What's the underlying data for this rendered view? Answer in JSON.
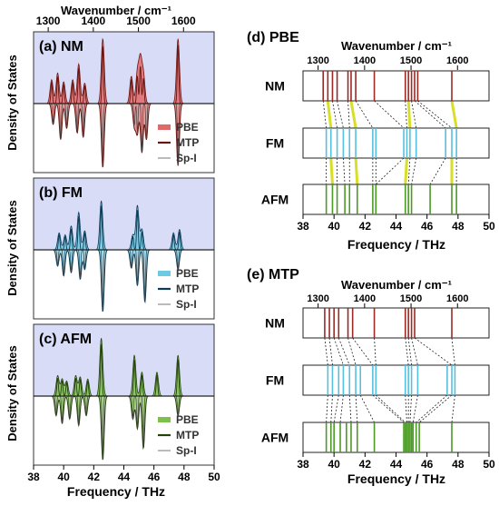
{
  "chart_data": [
    {
      "type": "area",
      "panels": [
        {
          "label": "(a) NM",
          "background": "#d8dcf7",
          "fill": "#e06a6a",
          "dark": "#6b1510",
          "legend": [
            "PBE",
            "MTP",
            "Sp-I"
          ],
          "upper_peaks": [
            [
              39.2,
              0.35
            ],
            [
              39.6,
              0.45
            ],
            [
              40.0,
              0.32
            ],
            [
              40.6,
              0.35
            ],
            [
              41.0,
              0.58
            ],
            [
              41.4,
              0.3
            ],
            [
              42.6,
              0.95
            ],
            [
              44.5,
              0.4
            ],
            [
              44.9,
              0.45
            ],
            [
              45.1,
              0.62
            ],
            [
              45.3,
              0.42
            ],
            [
              47.6,
              0.95
            ]
          ],
          "lower_peaks": [
            [
              39.3,
              0.32
            ],
            [
              39.8,
              0.55
            ],
            [
              40.2,
              0.38
            ],
            [
              40.9,
              0.45
            ],
            [
              41.3,
              0.52
            ],
            [
              42.6,
              0.98
            ],
            [
              44.7,
              0.35
            ],
            [
              44.9,
              0.45
            ],
            [
              45.2,
              0.75
            ],
            [
              45.5,
              0.55
            ],
            [
              47.6,
              0.95
            ]
          ]
        },
        {
          "label": "(b) FM",
          "background": "#d8dcf7",
          "fill": "#6ec9e2",
          "dark": "#0e3c57",
          "legend": [
            "PBE",
            "MTP",
            "Sp-I"
          ],
          "upper_peaks": [
            [
              39.7,
              0.25
            ],
            [
              40.1,
              0.22
            ],
            [
              40.5,
              0.35
            ],
            [
              41.0,
              0.55
            ],
            [
              41.4,
              0.28
            ],
            [
              42.5,
              0.72
            ],
            [
              44.6,
              0.22
            ],
            [
              44.9,
              0.65
            ],
            [
              45.2,
              0.3
            ],
            [
              47.3,
              0.25
            ],
            [
              47.7,
              0.3
            ]
          ],
          "lower_peaks": [
            [
              39.6,
              0.25
            ],
            [
              40.0,
              0.4
            ],
            [
              40.5,
              0.35
            ],
            [
              41.1,
              0.45
            ],
            [
              41.4,
              0.3
            ],
            [
              42.6,
              0.95
            ],
            [
              44.5,
              0.28
            ],
            [
              44.9,
              0.55
            ],
            [
              45.4,
              0.8
            ],
            [
              47.6,
              0.3
            ]
          ]
        },
        {
          "label": "(c) AFM",
          "background": "#d8dcf7",
          "fill": "#7fc04c",
          "dark": "#25420e",
          "legend": [
            "PBE",
            "MTP",
            "Sp-I"
          ],
          "upper_peaks": [
            [
              39.6,
              0.3
            ],
            [
              39.9,
              0.25
            ],
            [
              40.2,
              0.22
            ],
            [
              40.8,
              0.3
            ],
            [
              41.1,
              0.28
            ],
            [
              41.6,
              0.25
            ],
            [
              42.5,
              0.85
            ],
            [
              44.7,
              0.6
            ],
            [
              45.2,
              0.35
            ],
            [
              46.2,
              0.35
            ],
            [
              47.6,
              0.6
            ]
          ],
          "lower_peaks": [
            [
              39.5,
              0.3
            ],
            [
              39.9,
              0.42
            ],
            [
              40.4,
              0.35
            ],
            [
              41.0,
              0.45
            ],
            [
              41.5,
              0.3
            ],
            [
              42.6,
              0.98
            ],
            [
              44.6,
              0.35
            ],
            [
              44.9,
              0.5
            ],
            [
              45.3,
              0.8
            ],
            [
              47.6,
              0.3
            ]
          ]
        }
      ],
      "xlabel": "Frequency / THz",
      "xlim": [
        38,
        50
      ],
      "xticks": [
        38,
        40,
        42,
        44,
        46,
        48,
        50
      ],
      "ylabel": "Density of States",
      "top_axis": {
        "label": "Wavenumber / cm⁻¹",
        "ticks": [
          1300,
          1400,
          1500,
          1600
        ]
      }
    },
    {
      "type": "line",
      "title": "(d) PBE",
      "xlabel": "Frequency / THz",
      "xlim": [
        38,
        50
      ],
      "xticks": [
        38,
        40,
        42,
        44,
        46,
        48,
        50
      ],
      "top_axis": {
        "label": "Wavenumber / cm⁻¹",
        "ticks": [
          1300,
          1400,
          1500,
          1600
        ]
      },
      "rows": [
        {
          "label": "NM",
          "color": "#9b2a24",
          "lines": [
            39.3,
            39.6,
            39.9,
            40.2,
            40.9,
            41.1,
            41.4,
            42.6,
            44.6,
            44.8,
            45.0,
            45.2,
            45.4,
            47.6
          ]
        },
        {
          "label": "FM",
          "color": "#55c0e0",
          "lines": [
            39.5,
            39.8,
            40.2,
            40.6,
            41.0,
            41.4,
            42.5,
            42.7,
            44.5,
            44.7,
            44.9,
            45.3,
            47.2,
            47.6,
            47.9
          ]
        },
        {
          "label": "AFM",
          "color": "#4a9a25",
          "lines": [
            39.5,
            39.9,
            40.2,
            40.7,
            41.0,
            41.5,
            42.5,
            42.7,
            44.6,
            44.8,
            45.0,
            46.2,
            47.6,
            47.9
          ]
        }
      ],
      "highlight_color": "#d8de2a"
    },
    {
      "type": "line",
      "title": "(e) MTP",
      "xlabel": "Frequency / THz",
      "xlim": [
        38,
        50
      ],
      "xticks": [
        38,
        40,
        42,
        44,
        46,
        48,
        50
      ],
      "top_axis": {
        "label": "Wavenumber / cm⁻¹",
        "ticks": [
          1300,
          1400,
          1500,
          1600
        ]
      },
      "rows": [
        {
          "label": "NM",
          "color": "#9b2a24",
          "lines": [
            39.4,
            39.7,
            40.0,
            40.3,
            40.9,
            41.2,
            42.6,
            44.6,
            44.8,
            45.0,
            45.2,
            47.6
          ]
        },
        {
          "label": "FM",
          "color": "#55c0e0",
          "lines": [
            39.6,
            39.9,
            40.3,
            40.6,
            41.0,
            41.4,
            41.7,
            42.5,
            42.7,
            44.6,
            44.8,
            45.0,
            45.4,
            47.3,
            47.6,
            47.8
          ]
        },
        {
          "label": "AFM",
          "color": "#4a9a25",
          "lines": [
            39.5,
            39.8,
            40.0,
            40.4,
            40.8,
            41.1,
            41.5,
            42.6,
            44.5,
            44.6,
            44.7,
            44.8,
            44.9,
            45.0,
            45.1,
            45.3,
            45.5,
            47.6
          ]
        }
      ]
    }
  ]
}
